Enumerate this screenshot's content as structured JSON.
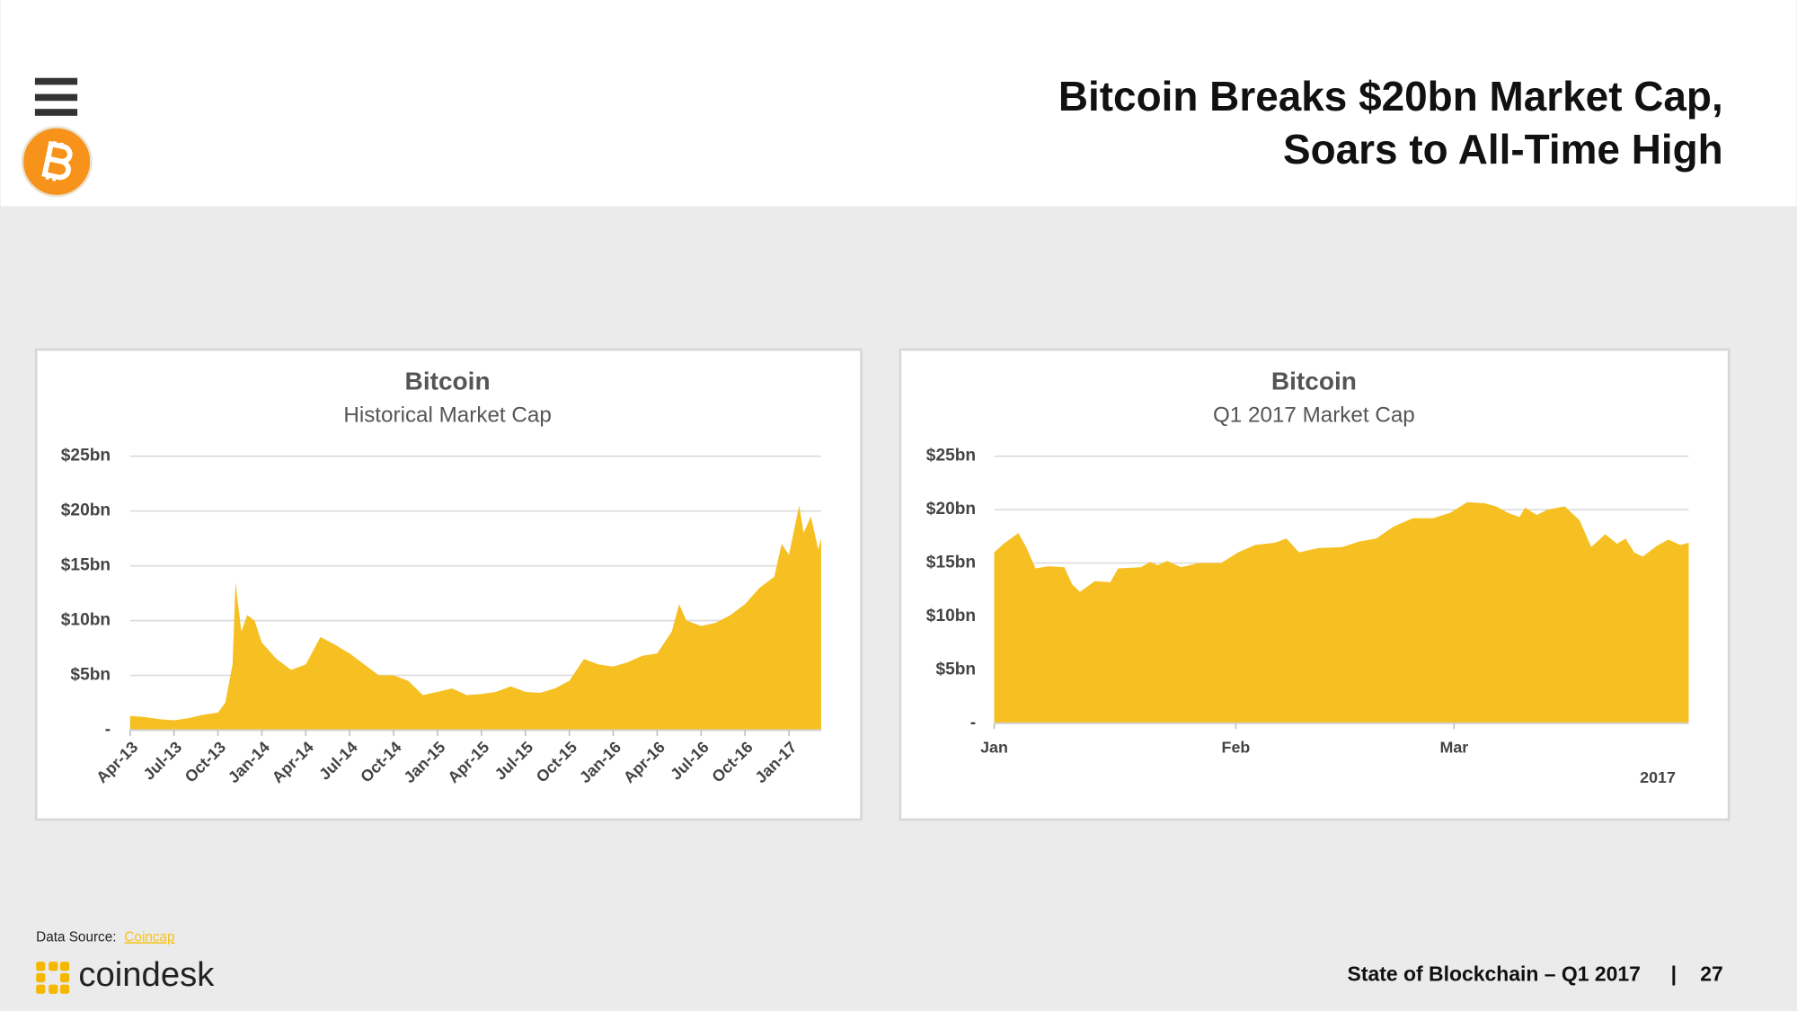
{
  "header": {
    "title_lines": [
      "Bitcoin Breaks $20bn Market Cap,",
      "Soars to All-Time High"
    ]
  },
  "chart_data": [
    {
      "type": "area",
      "title": "Bitcoin",
      "subtitle": "Historical Market Cap",
      "color": "#f6c023",
      "grid": true,
      "xtick_rotation": 45,
      "x": [
        0,
        1,
        2,
        3,
        4,
        5,
        6,
        6.5,
        7,
        7.2,
        7.6,
        8,
        8.5,
        9,
        10,
        11,
        12,
        13,
        14,
        15,
        16,
        17,
        18,
        19,
        20,
        21,
        22,
        23,
        24,
        25,
        26,
        27,
        28,
        29,
        30,
        31,
        32,
        33,
        34,
        35,
        36,
        37,
        37.5,
        38,
        39,
        40,
        41,
        42,
        43,
        44,
        44.5,
        45,
        45.7,
        46,
        46.5,
        47,
        47.2
      ],
      "values": [
        1.3,
        1.2,
        1.0,
        0.9,
        1.1,
        1.4,
        1.6,
        2.5,
        6,
        13.5,
        9,
        10.5,
        10,
        8,
        6.5,
        5.5,
        6,
        8.5,
        7.8,
        7,
        6,
        5,
        5,
        4.5,
        3.2,
        3.5,
        3.8,
        3.2,
        3.3,
        3.5,
        4,
        3.5,
        3.4,
        3.8,
        4.5,
        6.5,
        6,
        5.8,
        6.2,
        6.8,
        7,
        9,
        11.5,
        10,
        9.5,
        9.8,
        10.5,
        11.5,
        13,
        14,
        17,
        16,
        20.5,
        18,
        19.5,
        16.5,
        17.5
      ],
      "xlim": [
        0,
        47.2
      ],
      "ylim": [
        0,
        25
      ],
      "xticks": [
        {
          "value": 0,
          "label": "Apr-13"
        },
        {
          "value": 3,
          "label": "Jul-13"
        },
        {
          "value": 6,
          "label": "Oct-13"
        },
        {
          "value": 9,
          "label": "Jan-14"
        },
        {
          "value": 12,
          "label": "Apr-14"
        },
        {
          "value": 15,
          "label": "Jul-14"
        },
        {
          "value": 18,
          "label": "Oct-14"
        },
        {
          "value": 21,
          "label": "Jan-15"
        },
        {
          "value": 24,
          "label": "Apr-15"
        },
        {
          "value": 27,
          "label": "Jul-15"
        },
        {
          "value": 30,
          "label": "Oct-15"
        },
        {
          "value": 33,
          "label": "Jan-16"
        },
        {
          "value": 36,
          "label": "Apr-16"
        },
        {
          "value": 39,
          "label": "Jul-16"
        },
        {
          "value": 42,
          "label": "Oct-16"
        },
        {
          "value": 45,
          "label": "Jan-17"
        }
      ],
      "yticks": [
        {
          "value": 0,
          "label": "-"
        },
        {
          "value": 5,
          "label": "$5bn"
        },
        {
          "value": 10,
          "label": "$10bn"
        },
        {
          "value": 15,
          "label": "$15bn"
        },
        {
          "value": 20,
          "label": "$20bn"
        },
        {
          "value": 25,
          "label": "$25bn"
        }
      ]
    },
    {
      "type": "area",
      "title": "Bitcoin",
      "subtitle": "Q1 2017 Market Cap",
      "color": "#f6c023",
      "grid": true,
      "xtick_rotation": 0,
      "xlabel": "2017",
      "x": [
        0,
        1.2,
        3.1,
        4.1,
        5.3,
        7,
        9,
        10,
        11,
        12.9,
        14.9,
        15.9,
        18.8,
        20,
        21,
        22.2,
        24,
        26.2,
        29.1,
        31.3,
        33.5,
        36,
        37.5,
        39.1,
        41.6,
        44.6,
        46.8,
        49,
        51.2,
        53.7,
        56.3,
        58.5,
        60.7,
        62.9,
        64.4,
        65.9,
        67.4,
        68.1,
        69.6,
        71,
        73.2,
        75.1,
        76.6,
        78.4,
        79.9,
        81,
        82.1,
        83.2,
        85,
        86.5,
        88,
        89.1
      ],
      "values": [
        16,
        16.8,
        17.8,
        16.5,
        14.5,
        14.7,
        14.6,
        13,
        12.3,
        13.3,
        13.2,
        14.5,
        14.6,
        15.1,
        14.8,
        15.2,
        14.6,
        15,
        15,
        16,
        16.7,
        16.9,
        17.3,
        16,
        16.4,
        16.5,
        17,
        17.3,
        18.4,
        19.2,
        19.2,
        19.7,
        20.7,
        20.6,
        20.3,
        19.7,
        19.3,
        20.2,
        19.5,
        20,
        20.3,
        19,
        16.5,
        17.7,
        16.8,
        17.3,
        16,
        15.6,
        16.6,
        17.2,
        16.7,
        16.9
      ],
      "xlim": [
        0,
        89.1
      ],
      "ylim": [
        0,
        25
      ],
      "xticks": [
        {
          "value": 0,
          "label": "Jan"
        },
        {
          "value": 31,
          "label": "Feb"
        },
        {
          "value": 59,
          "label": "Mar"
        }
      ],
      "yticks": [
        {
          "value": 0,
          "label": "-"
        },
        {
          "value": 5,
          "label": "$5bn"
        },
        {
          "value": 10,
          "label": "$10bn"
        },
        {
          "value": 15,
          "label": "$15bn"
        },
        {
          "value": 20,
          "label": "$20bn"
        },
        {
          "value": 25,
          "label": "$25bn"
        }
      ]
    }
  ],
  "footer": {
    "source_label": "Data Source:",
    "source_link": "Coincap",
    "brand": "coindesk",
    "report": "State of Blockchain – Q1 2017",
    "separator": "|",
    "page": "27"
  }
}
